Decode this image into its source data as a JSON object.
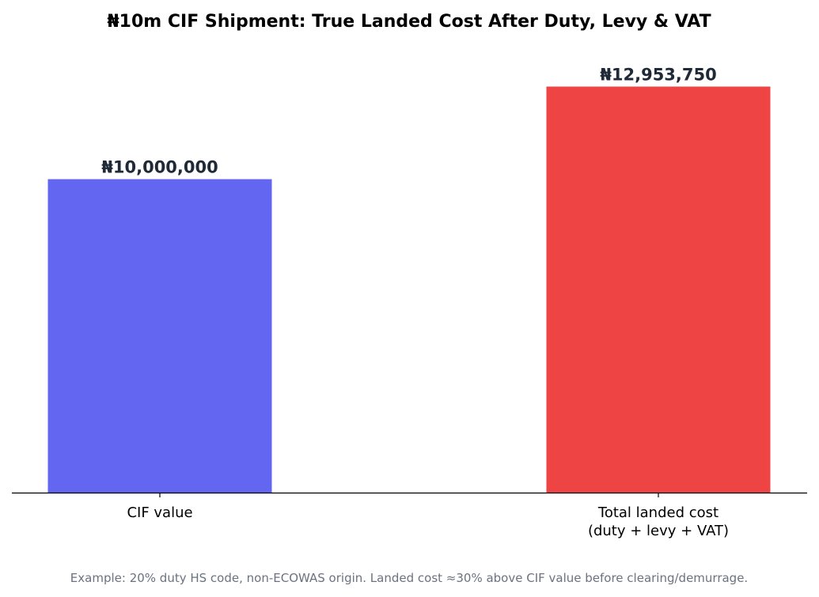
{
  "chart_data": {
    "type": "bar",
    "title": "₦10m CIF Shipment: True Landed Cost After Duty, Levy & VAT",
    "categories": [
      [
        "CIF value"
      ],
      [
        "Total landed cost",
        "(duty + levy + VAT)"
      ]
    ],
    "values": [
      10000000,
      12953750
    ],
    "data_labels": [
      "₦10,000,000",
      "₦12,953,750"
    ],
    "colors": [
      "#6366f1",
      "#ef4444"
    ],
    "ylim": [
      0,
      14000000
    ],
    "xlabel": "",
    "ylabel": "",
    "grid": false,
    "legend": "none",
    "annotation": "Example: 20% duty HS code, non-ECOWAS origin. Landed cost ≈30% above CIF value before clearing/demurrage."
  }
}
